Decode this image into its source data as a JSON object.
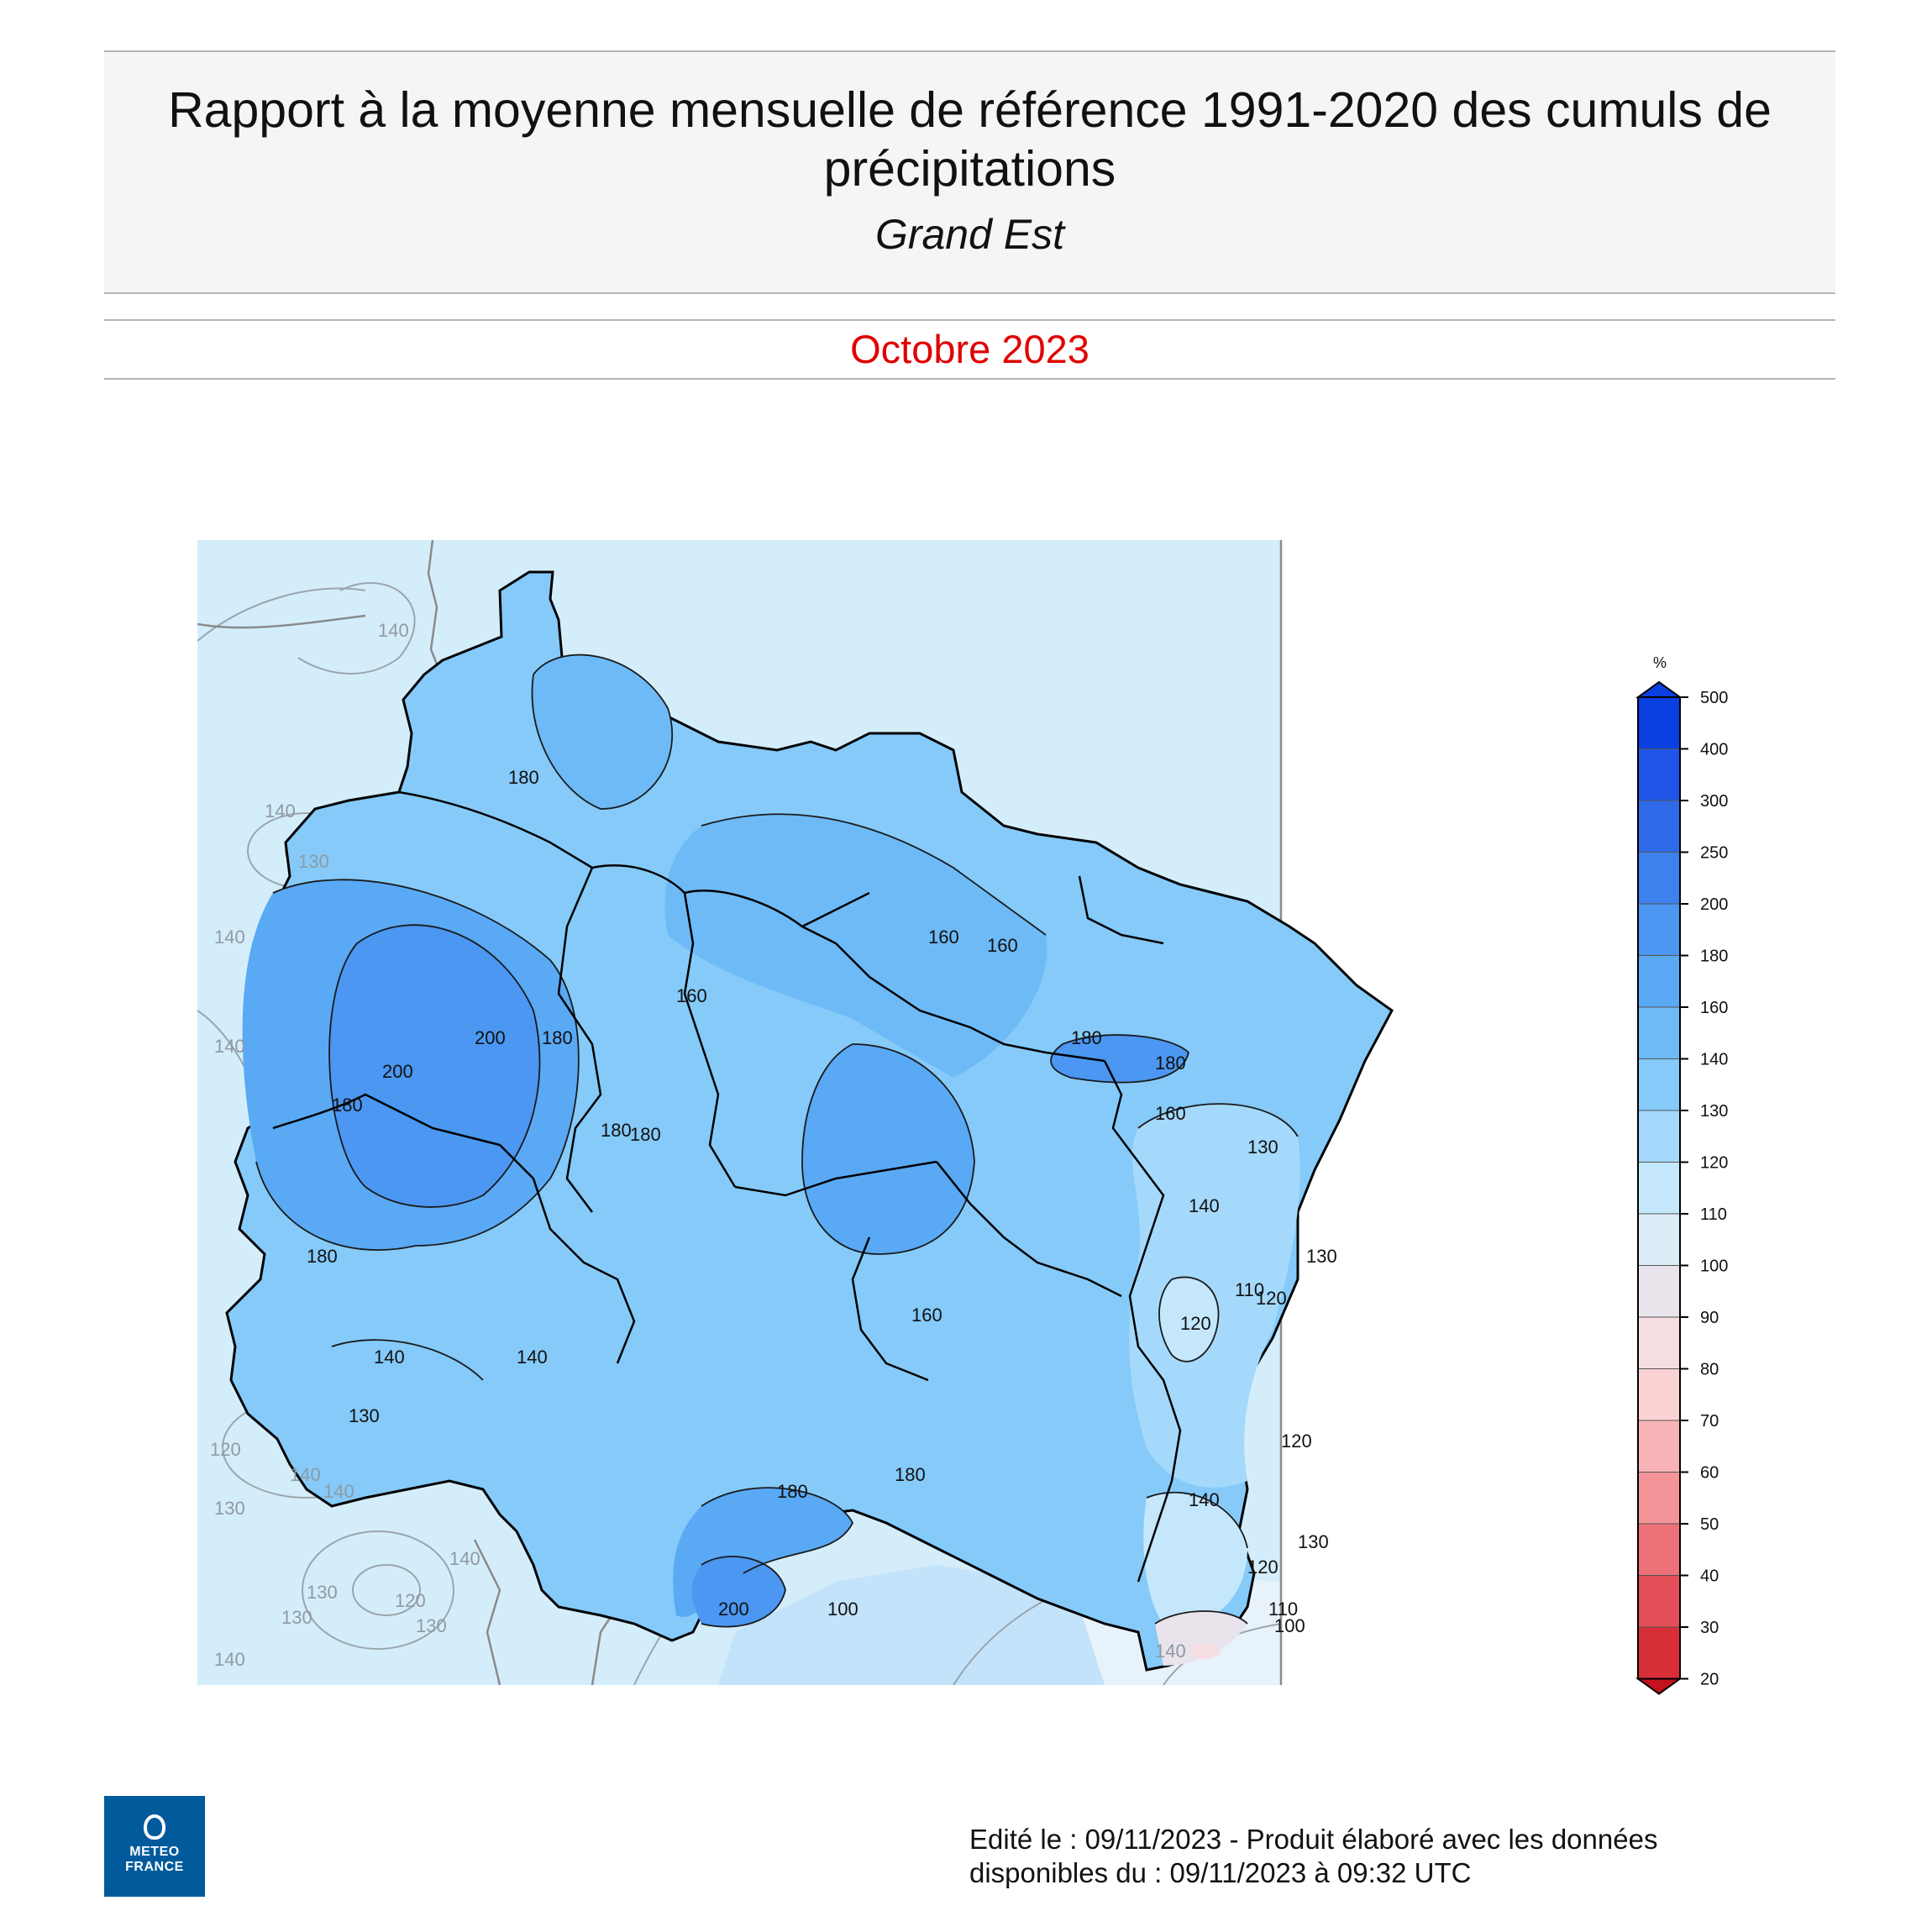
{
  "header": {
    "title": "Rapport à la moyenne mensuelle de référence 1991-2020 des cumuls de précipitations",
    "region": "Grand Est",
    "period": "Octobre 2023"
  },
  "legend": {
    "unit": "%",
    "levels": [
      {
        "value": "500",
        "color": "#0a3fe0"
      },
      {
        "value": "400",
        "color": "#1f55e6"
      },
      {
        "value": "300",
        "color": "#2f6ae8"
      },
      {
        "value": "250",
        "color": "#3c81ed"
      },
      {
        "value": "200",
        "color": "#4b97f2"
      },
      {
        "value": "180",
        "color": "#59a9f5"
      },
      {
        "value": "160",
        "color": "#6dbaf7"
      },
      {
        "value": "140",
        "color": "#85caf9"
      },
      {
        "value": "130",
        "color": "#a4d9fb"
      },
      {
        "value": "120",
        "color": "#c4e7fc"
      },
      {
        "value": "110",
        "color": "#dcedf8"
      },
      {
        "value": "100",
        "color": "#e9e4ec"
      },
      {
        "value": "90",
        "color": "#f6dde1"
      },
      {
        "value": "80",
        "color": "#fbd2d4"
      },
      {
        "value": "70",
        "color": "#f8b3b7"
      },
      {
        "value": "60",
        "color": "#f39499"
      },
      {
        "value": "50",
        "color": "#ec7178"
      },
      {
        "value": "40",
        "color": "#e34f58"
      },
      {
        "value": "30",
        "color": "#d82e38"
      },
      {
        "value": "20",
        "color": "#c1121d"
      }
    ]
  },
  "map": {
    "contour_labels": [
      "140",
      "130",
      "140",
      "140",
      "140",
      "140",
      "180",
      "200",
      "200",
      "180",
      "180",
      "180",
      "180",
      "180",
      "160",
      "160",
      "160",
      "180",
      "180",
      "160",
      "130",
      "140",
      "130",
      "110",
      "120",
      "120",
      "140",
      "140",
      "130",
      "160",
      "180",
      "200",
      "100",
      "180",
      "140",
      "120",
      "130",
      "120",
      "110",
      "100",
      "130",
      "120",
      "140",
      "140",
      "130",
      "130",
      "120",
      "130",
      "140",
      "140"
    ]
  },
  "footer": {
    "line1": "Edité le : 09/11/2023 - Produit élaboré avec les données",
    "line2": "disponibles du : 09/11/2023 à 09:32 UTC"
  },
  "logo": {
    "line1": "METEO",
    "line2": "FRANCE"
  }
}
